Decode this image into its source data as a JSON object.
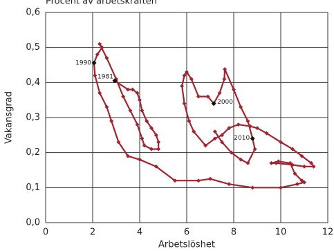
{
  "chart_data": {
    "type": "line",
    "title": "Procent av arbetskraften",
    "x_label": "Arbetslöshet",
    "y_label": "Vakansgrad",
    "x": [
      2.94,
      3.5,
      3.7,
      3.9,
      4.0,
      4.1,
      4.3,
      4.5,
      4.7,
      4.8,
      4.8,
      4.5,
      4.2,
      4.1,
      3.9,
      3.6,
      3.3,
      3.0,
      2.6,
      2.3,
      2.4,
      2.2,
      2.06,
      2.1,
      2.3,
      2.6,
      2.8,
      3.1,
      3.5,
      4.0,
      4.7,
      5.5,
      6.5,
      7.0,
      7.8,
      8.8,
      10.0,
      10.7,
      11.0,
      10.9,
      10.6,
      10.4,
      9.9,
      9.6,
      9.8,
      10.5,
      11.0,
      11.4,
      11.3,
      10.9,
      10.5,
      10.0,
      9.4,
      9.0,
      8.7,
      8.2,
      7.8,
      7.5,
      7.2,
      6.8,
      6.3,
      6.1,
      5.9,
      5.8,
      5.9,
      6.0,
      6.2,
      6.5,
      6.9,
      7.15,
      7.4,
      7.6,
      7.62,
      8.0,
      8.3,
      8.6,
      8.8,
      8.9,
      8.6,
      8.3,
      7.9,
      7.5,
      7.2
    ],
    "values": [
      0.405,
      0.38,
      0.38,
      0.37,
      0.35,
      0.32,
      0.29,
      0.27,
      0.25,
      0.23,
      0.21,
      0.21,
      0.22,
      0.24,
      0.28,
      0.32,
      0.36,
      0.41,
      0.47,
      0.51,
      0.5,
      0.48,
      0.456,
      0.42,
      0.37,
      0.33,
      0.29,
      0.23,
      0.19,
      0.18,
      0.16,
      0.12,
      0.12,
      0.125,
      0.11,
      0.1,
      0.1,
      0.11,
      0.115,
      0.12,
      0.14,
      0.17,
      0.175,
      0.17,
      0.17,
      0.165,
      0.16,
      0.16,
      0.17,
      0.19,
      0.21,
      0.23,
      0.255,
      0.27,
      0.275,
      0.28,
      0.27,
      0.25,
      0.24,
      0.22,
      0.26,
      0.29,
      0.34,
      0.39,
      0.42,
      0.43,
      0.41,
      0.36,
      0.36,
      0.34,
      0.37,
      0.41,
      0.438,
      0.38,
      0.33,
      0.29,
      0.24,
      0.21,
      0.17,
      0.18,
      0.2,
      0.23,
      0.26
    ],
    "color": "#a5222e",
    "annotations": [
      {
        "text": "1981",
        "x": 2.94,
        "y": 0.405
      },
      {
        "text": "1990",
        "x": 2.06,
        "y": 0.456
      },
      {
        "text": "2000",
        "x": 7.15,
        "y": 0.34
      },
      {
        "text": "2010",
        "x": 8.8,
        "y": 0.24
      }
    ],
    "xlim": [
      0,
      12
    ],
    "xticks": [
      0,
      2,
      4,
      6,
      8,
      10,
      12
    ],
    "ylim": [
      0,
      0.6
    ],
    "yticks": [
      {
        "value": 0,
        "label": "0,0"
      },
      {
        "value": 0.1,
        "label": "0,1"
      },
      {
        "value": 0.2,
        "label": "0,2"
      },
      {
        "value": 0.3,
        "label": "0,3"
      },
      {
        "value": 0.4,
        "label": "0,4"
      },
      {
        "value": 0.5,
        "label": "0,5"
      },
      {
        "value": 0.6,
        "label": "0,6"
      }
    ],
    "grid": true
  }
}
